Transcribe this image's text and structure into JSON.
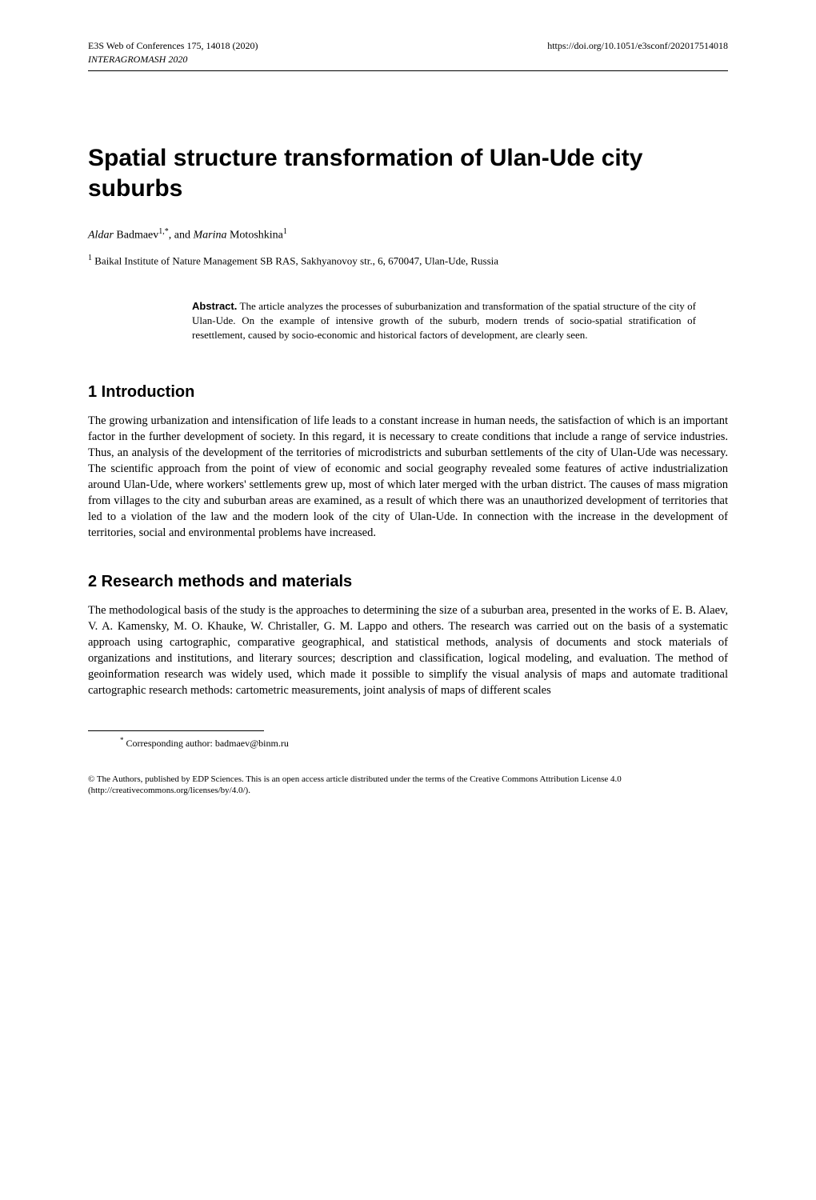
{
  "header": {
    "left": "E3S Web of Conferences 175, 14018 (2020)",
    "right": "https://doi.org/10.1051/e3sconf/202017514018",
    "sub": "INTERAGROMASH 2020"
  },
  "title": "Spatial structure transformation of Ulan-Ude city suburbs",
  "authors": {
    "a1_firstname": "Aldar",
    "a1_surname": " Badmaev",
    "a1_sup": "1,*",
    "sep": ", and ",
    "a2_firstname": "Marina",
    "a2_surname": " Motoshkina",
    "a2_sup": "1"
  },
  "affiliation": {
    "sup": "1",
    "text": " Baikal Institute of Nature Management SB RAS, Sakhyanovoy str., 6, 670047, Ulan-Ude, Russia"
  },
  "abstract": {
    "label": "Abstract.",
    "text": " The article analyzes the processes of suburbanization and transformation of the spatial structure of the city of Ulan-Ude. On the example of intensive growth of the suburb, modern trends of socio-spatial stratification of resettlement, caused by socio-economic and historical factors of development, are clearly seen."
  },
  "sections": {
    "s1": {
      "heading": "1 Introduction",
      "body": "The growing urbanization and intensification of life leads to a constant increase in human needs, the satisfaction of which is an important factor in the further development of society. In this regard, it is necessary to create conditions that include a range of service industries. Thus, an analysis of the development of the territories of microdistricts and suburban settlements of the city of Ulan-Ude was necessary. The scientific approach from the point of view of economic and social geography revealed some features of active industrialization around Ulan-Ude, where workers' settlements grew up, most of which later merged with the urban district. The causes of mass migration from villages to the city and suburban areas are examined, as a result of which there was an unauthorized development of territories that led to a violation of the law and the modern look of the city of Ulan-Ude. In connection with the increase in the development of territories, social and environmental problems have increased."
    },
    "s2": {
      "heading": "2 Research methods and materials",
      "body": "The methodological basis of the study is the approaches to determining the size of a suburban area, presented in the works of E. B. Alaev, V. A. Kamensky, M. O. Khauke, W. Christaller, G. M. Lappo and others. The research was carried out on the basis of a systematic approach using cartographic, comparative geographical, and statistical methods, analysis of documents and stock materials of organizations and institutions, and literary sources; description and classification, logical modeling, and evaluation. The method of geoinformation research was widely used, which made it possible to simplify the visual analysis of maps and automate traditional cartographic research methods: cartometric measurements, joint analysis of maps of different scales"
    }
  },
  "footnote": {
    "sup": "*",
    "text": " Corresponding author: badmaev@binm.ru"
  },
  "license": "© The Authors, published by EDP Sciences. This is an open access article distributed under the terms of the Creative Commons Attribution License 4.0 (http://creativecommons.org/licenses/by/4.0/)."
}
